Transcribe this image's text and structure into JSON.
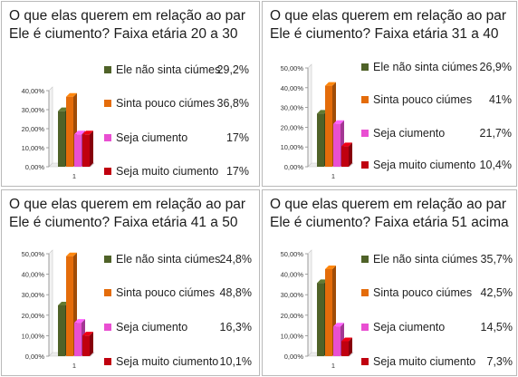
{
  "panels": [
    {
      "title": "O que elas querem em relação ao par\nEle é ciumento? Faixa etária 20 a 30",
      "chart_data": {
        "type": "bar",
        "categories": [
          "1"
        ],
        "series": [
          {
            "name": "Ele não sinta ciúmes",
            "values": [
              29.2
            ],
            "label": "29,2%",
            "color": "#4f6228"
          },
          {
            "name": "Sinta pouco ciúmes",
            "values": [
              36.8
            ],
            "label": "36,8%",
            "color": "#e46c0a"
          },
          {
            "name": "Seja ciumento",
            "values": [
              17
            ],
            "label": "17%",
            "color": "#e94fd2"
          },
          {
            "name": "Seja muito ciumento",
            "values": [
              17
            ],
            "label": "17%",
            "color": "#c0000f"
          }
        ],
        "ylim": [
          0,
          40
        ],
        "yticks": [
          "0,00%",
          "10,00%",
          "20,00%",
          "30,00%",
          "40,00%"
        ],
        "xticks": [
          "1"
        ],
        "grid": false,
        "legend_position": "right"
      }
    },
    {
      "title": "O que elas querem em relação ao par\nEle é ciumento? Faixa etária 31 a 40",
      "chart_data": {
        "type": "bar",
        "categories": [
          "1"
        ],
        "series": [
          {
            "name": "Ele não sinta ciúmes",
            "values": [
              26.9
            ],
            "label": "26,9%",
            "color": "#4f6228"
          },
          {
            "name": "Sinta pouco ciúmes",
            "values": [
              41
            ],
            "label": "41%",
            "color": "#e46c0a"
          },
          {
            "name": "Seja ciumento",
            "values": [
              21.7
            ],
            "label": "21,7%",
            "color": "#e94fd2"
          },
          {
            "name": "Seja muito ciumento",
            "values": [
              10.4
            ],
            "label": "10,4%",
            "color": "#c0000f"
          }
        ],
        "ylim": [
          0,
          50
        ],
        "yticks": [
          "0,00%",
          "10,00%",
          "20,00%",
          "30,00%",
          "40,00%",
          "50,00%"
        ],
        "xticks": [
          "1"
        ],
        "grid": false,
        "legend_position": "right"
      }
    },
    {
      "title": "O que elas querem em relação ao par\nEle é ciumento?  Faixa etária 41 a 50",
      "chart_data": {
        "type": "bar",
        "categories": [
          "1"
        ],
        "series": [
          {
            "name": "Ele não sinta ciúmes",
            "values": [
              24.8
            ],
            "label": "24,8%",
            "color": "#4f6228"
          },
          {
            "name": "Sinta pouco ciúmes",
            "values": [
              48.8
            ],
            "label": "48,8%",
            "color": "#e46c0a"
          },
          {
            "name": "Seja ciumento",
            "values": [
              16.3
            ],
            "label": "16,3%",
            "color": "#e94fd2"
          },
          {
            "name": "Seja muito ciumento",
            "values": [
              10.1
            ],
            "label": "10,1%",
            "color": "#c0000f"
          }
        ],
        "ylim": [
          0,
          50
        ],
        "yticks": [
          "0,00%",
          "10,00%",
          "20,00%",
          "30,00%",
          "40,00%",
          "50,00%"
        ],
        "xticks": [
          "1"
        ],
        "grid": false,
        "legend_position": "right"
      }
    },
    {
      "title": "O que elas querem em relação ao par\nEle é ciumento? Faixa etária 51 acima",
      "chart_data": {
        "type": "bar",
        "categories": [
          "1"
        ],
        "series": [
          {
            "name": "Ele não sinta ciúmes",
            "values": [
              35.7
            ],
            "label": "35,7%",
            "color": "#4f6228"
          },
          {
            "name": "Sinta pouco ciúmes",
            "values": [
              42.5
            ],
            "label": "42,5%",
            "color": "#e46c0a"
          },
          {
            "name": "Seja ciumento",
            "values": [
              14.5
            ],
            "label": "14,5%",
            "color": "#e94fd2"
          },
          {
            "name": "Seja muito ciumento",
            "values": [
              7.3
            ],
            "label": "7,3%",
            "color": "#c0000f"
          }
        ],
        "ylim": [
          0,
          50
        ],
        "yticks": [
          "0,00%",
          "10,00%",
          "20,00%",
          "30,00%",
          "40,00%",
          "50,00%"
        ],
        "xticks": [
          "1"
        ],
        "grid": false,
        "legend_position": "right"
      }
    }
  ]
}
